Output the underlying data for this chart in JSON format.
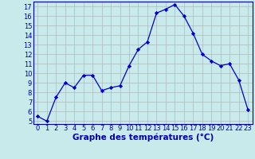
{
  "hours": [
    0,
    1,
    2,
    3,
    4,
    5,
    6,
    7,
    8,
    9,
    10,
    11,
    12,
    13,
    14,
    15,
    16,
    17,
    18,
    19,
    20,
    21,
    22,
    23
  ],
  "temps": [
    5.5,
    5.0,
    7.5,
    9.0,
    8.5,
    9.8,
    9.8,
    8.2,
    8.5,
    8.7,
    10.8,
    12.5,
    13.3,
    16.3,
    16.7,
    17.2,
    16.0,
    14.2,
    12.0,
    11.3,
    10.8,
    11.0,
    9.3,
    6.2
  ],
  "xlabel": "Graphe des températures (°C)",
  "ylim_min": 4.7,
  "ylim_max": 17.5,
  "xlim_min": -0.5,
  "xlim_max": 23.5,
  "yticks": [
    5,
    6,
    7,
    8,
    9,
    10,
    11,
    12,
    13,
    14,
    15,
    16,
    17
  ],
  "xticks": [
    0,
    1,
    2,
    3,
    4,
    5,
    6,
    7,
    8,
    9,
    10,
    11,
    12,
    13,
    14,
    15,
    16,
    17,
    18,
    19,
    20,
    21,
    22,
    23
  ],
  "line_color": "#0000cc",
  "marker": "D",
  "marker_size": 2.2,
  "bg_color": "#c8eaea",
  "grid_color": "#aabbbb",
  "label_color": "#0000aa",
  "tick_fontsize": 6.0,
  "xlabel_fontsize": 7.5,
  "xlabel_bold": true
}
